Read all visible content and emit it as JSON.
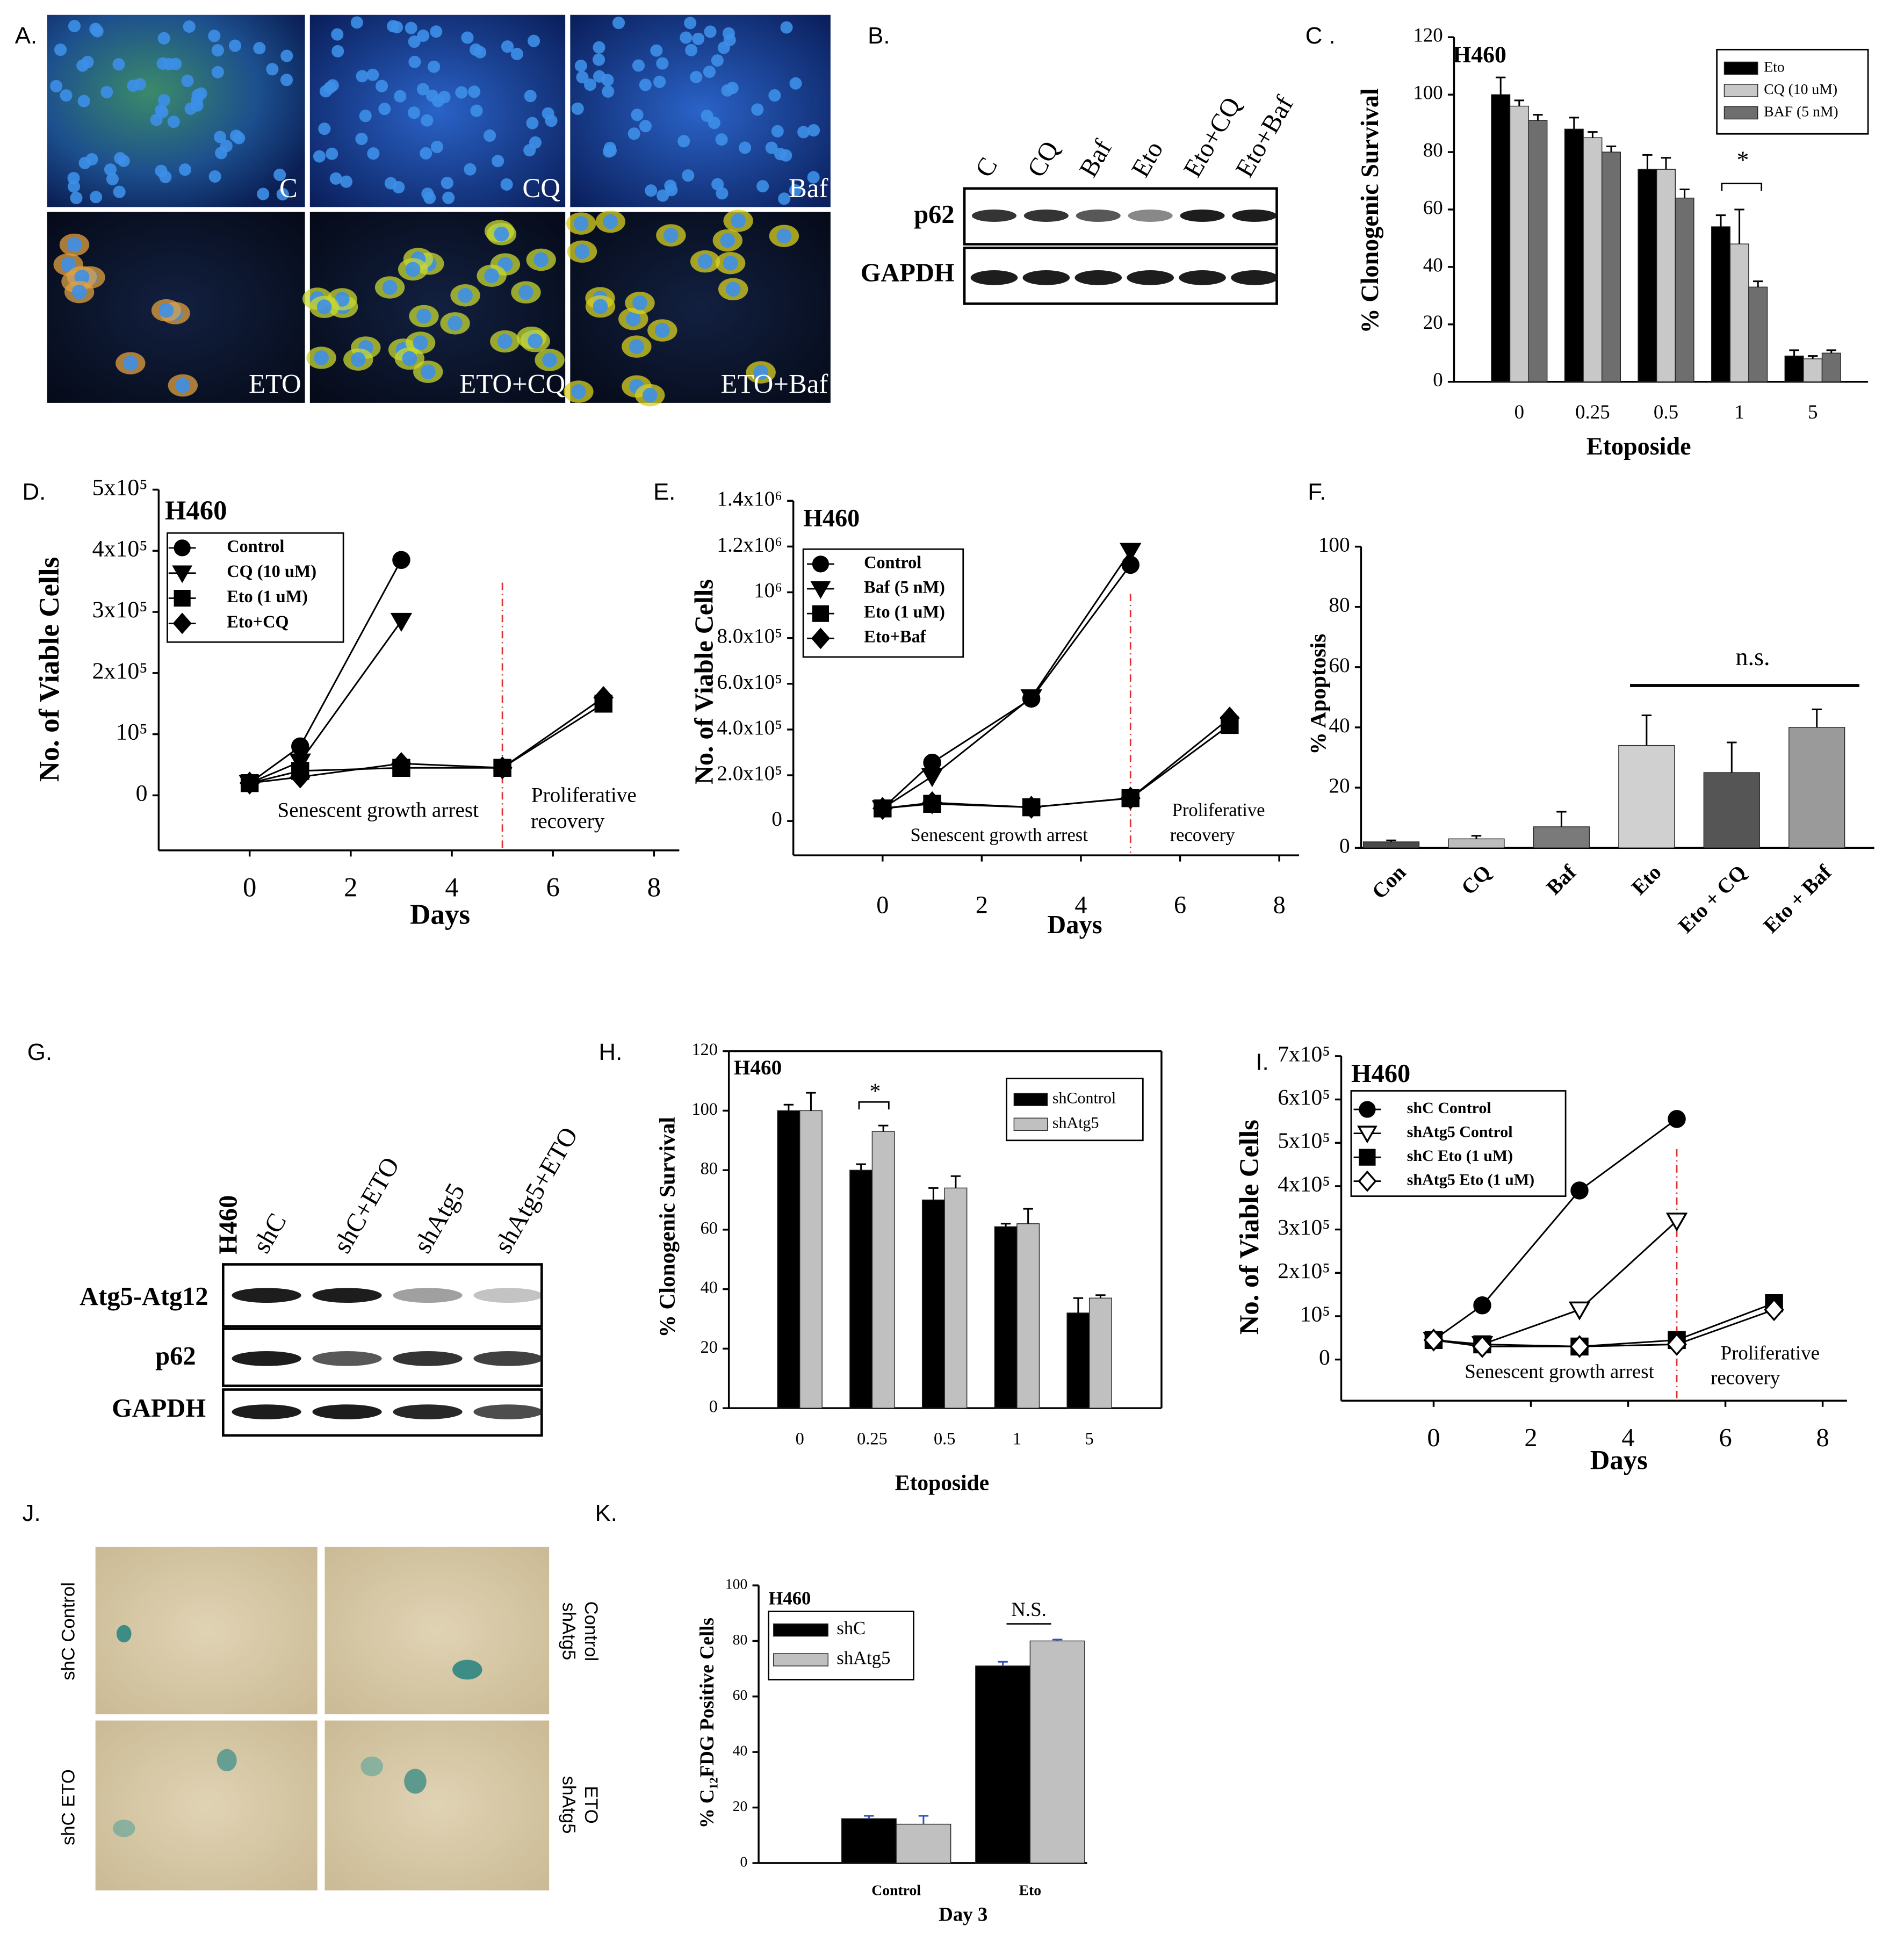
{
  "figure": {
    "panel_labels": [
      "A.",
      "B.",
      "C .",
      "D.",
      "E.",
      "F.",
      "G.",
      "H.",
      "I.",
      "J.",
      "K."
    ],
    "micrographs": [
      "C",
      "CQ",
      "Baf",
      "ETO",
      "ETO+CQ",
      "ETO+Baf"
    ],
    "blot_b": {
      "lanes": [
        "C",
        "CQ",
        "Baf",
        "Eto",
        "Eto+CQ",
        "Eto+Baf"
      ],
      "rows": [
        "p62",
        "GAPDH"
      ]
    },
    "blot_g": {
      "cell_line": "H460",
      "lanes": [
        "shC",
        "shC+ETO",
        "shAtg5",
        "shAtg5+ETO"
      ],
      "rows": [
        "Atg5-Atg12",
        "p62",
        "GAPDH"
      ]
    },
    "stain_labels": [
      "shC Control",
      "shAtg5",
      "Control",
      "shC ETO",
      "shAtg5",
      "ETO"
    ]
  },
  "chart_data": [
    {
      "type": "bar",
      "title": "H460",
      "x_label": "Etoposide",
      "y_label": "% Clonogenic Survival",
      "categories": [
        "0",
        "0.25",
        "0.5",
        "1",
        "5"
      ],
      "series": [
        {
          "name": "Eto",
          "color": "#000000",
          "values": [
            100,
            88,
            74,
            54,
            9
          ],
          "errors": [
            6,
            4,
            5,
            4,
            2
          ]
        },
        {
          "name": "CQ (10 uM)",
          "color": "#c8c8c8",
          "values": [
            96,
            85,
            74,
            48,
            8
          ],
          "errors": [
            2,
            2,
            4,
            12,
            1
          ]
        },
        {
          "name": "BAF (5 nM)",
          "color": "#6e6e6e",
          "values": [
            91,
            80,
            64,
            33,
            10
          ],
          "errors": [
            2,
            2,
            3,
            2,
            1
          ]
        }
      ],
      "ylim": [
        0,
        120
      ],
      "yticks": [
        0,
        20,
        40,
        60,
        80,
        100,
        120
      ],
      "legend": "upper right",
      "annotations": [
        "*"
      ]
    },
    {
      "type": "line",
      "title": "H460",
      "x_label": "Days",
      "y_label": "No. of Viable Cells",
      "series": [
        {
          "name": "Control",
          "color": "#000000",
          "marker": "circle",
          "filled": true,
          "x": [
            0,
            1,
            3
          ],
          "values": [
            20000,
            80000,
            385000
          ]
        },
        {
          "name": "CQ (10 uM)",
          "color": "#000000",
          "marker": "triangle-down",
          "filled": true,
          "x": [
            0,
            1,
            3
          ],
          "values": [
            20000,
            55000,
            285000
          ]
        },
        {
          "name": "Eto (1 uM)",
          "color": "#000000",
          "marker": "square",
          "filled": true,
          "x": [
            0,
            1,
            3,
            5,
            7
          ],
          "values": [
            20000,
            40000,
            45000,
            45000,
            150000
          ]
        },
        {
          "name": "Eto+CQ",
          "color": "#000000",
          "marker": "diamond",
          "filled": true,
          "x": [
            0,
            1,
            3,
            5,
            7
          ],
          "values": [
            20000,
            30000,
            52000,
            45000,
            160000
          ]
        }
      ],
      "xlim": [
        -1.8,
        8.5
      ],
      "xticks": [
        0,
        2,
        4,
        6,
        8
      ],
      "ylim": [
        -90000,
        500000
      ],
      "yticks": [
        0,
        {
          "value": 100000,
          "label": "10⁵"
        },
        {
          "value": 200000,
          "label": "2x10⁵"
        },
        {
          "value": 300000,
          "label": "3x10⁵"
        },
        {
          "value": 400000,
          "label": "4x10⁵"
        },
        {
          "value": 500000,
          "label": "5x10⁵"
        }
      ],
      "vline": 5,
      "vline_color": "#e03030",
      "legend": "upper left",
      "annotations": [
        "Senescent growth arrest",
        "Proliferative",
        "recovery"
      ]
    },
    {
      "type": "line",
      "title": "H460",
      "x_label": "Days",
      "y_label": "No. of Viable Cells",
      "series": [
        {
          "name": "Control",
          "color": "#000000",
          "marker": "circle",
          "filled": true,
          "x": [
            0,
            1,
            3,
            5
          ],
          "values": [
            55000,
            255000,
            535000,
            1120000
          ]
        },
        {
          "name": "Baf (5 nM)",
          "color": "#000000",
          "marker": "triangle-down",
          "filled": true,
          "x": [
            0,
            1,
            3,
            5
          ],
          "values": [
            55000,
            195000,
            540000,
            1180000
          ]
        },
        {
          "name": "Eto (1 uM)",
          "color": "#000000",
          "marker": "square",
          "filled": true,
          "x": [
            0,
            1,
            3,
            5,
            7
          ],
          "values": [
            55000,
            75000,
            60000,
            100000,
            420000
          ]
        },
        {
          "name": "Eto+Baf",
          "color": "#000000",
          "marker": "diamond",
          "filled": true,
          "x": [
            0,
            1,
            3,
            5,
            7
          ],
          "values": [
            55000,
            80000,
            60000,
            100000,
            450000
          ]
        }
      ],
      "xlim": [
        -1.8,
        8.4
      ],
      "xticks": [
        0,
        2,
        4,
        6,
        8
      ],
      "ylim": [
        -150000,
        1400000
      ],
      "yticks": [
        0,
        {
          "value": 200000,
          "label": "2.0x10⁵"
        },
        {
          "value": 400000,
          "label": "4.0x10⁵"
        },
        {
          "value": 600000,
          "label": "6.0x10⁵"
        },
        {
          "value": 800000,
          "label": "8.0x10⁵"
        },
        {
          "value": 1000000,
          "label": "10⁶"
        },
        {
          "value": 1200000,
          "label": "1.2x10⁶"
        },
        {
          "value": 1400000,
          "label": "1.4x10⁶"
        }
      ],
      "vline": 5,
      "vline_color": "#e03030",
      "legend": "upper left",
      "annotations": [
        "Senescent growth arrest",
        "Proliferative",
        "recovery"
      ]
    },
    {
      "type": "bar",
      "y_label": "% Apoptosis",
      "categories": [
        "Con",
        "CQ",
        "Baf",
        "Eto",
        "Eto + CQ",
        "Eto + Baf"
      ],
      "values": [
        2,
        3,
        7,
        34,
        25,
        40
      ],
      "errors": [
        0.5,
        1,
        5,
        10,
        10,
        6
      ],
      "colors": [
        "#4a4a4a",
        "#bdbdbd",
        "#7a7a7a",
        "#d0d0d0",
        "#555555",
        "#9a9a9a"
      ],
      "ylim": [
        0,
        100
      ],
      "yticks": [
        0,
        20,
        40,
        60,
        80,
        100
      ],
      "annotations": [
        "n.s."
      ]
    },
    {
      "type": "bar",
      "title": "H460",
      "x_label": "Etoposide",
      "y_label": "% Clonogenic Survival",
      "categories": [
        "0",
        "0.25",
        "0.5",
        "1",
        "5"
      ],
      "series": [
        {
          "name": "shControl",
          "color": "#000000",
          "values": [
            100,
            80,
            70,
            61,
            32
          ],
          "errors": [
            2,
            2,
            4,
            1,
            5
          ]
        },
        {
          "name": "shAtg5",
          "color": "#c0c0c0",
          "values": [
            100,
            93,
            74,
            62,
            37
          ],
          "errors": [
            6,
            2,
            4,
            5,
            1
          ]
        }
      ],
      "ylim": [
        0,
        120
      ],
      "yticks": [
        0,
        20,
        40,
        60,
        80,
        100,
        120
      ],
      "legend": "upper right",
      "annotations": [
        "*"
      ]
    },
    {
      "type": "line",
      "title": "H460",
      "x_label": "Days",
      "y_label": "No. of Viable Cells",
      "series": [
        {
          "name": "shC Control",
          "color": "#000000",
          "marker": "circle",
          "filled": true,
          "x": [
            0,
            1,
            3,
            5
          ],
          "values": [
            45000,
            125000,
            390000,
            555000
          ]
        },
        {
          "name": "shAtg5 Control",
          "color": "#000000",
          "marker": "triangle-down",
          "filled": false,
          "x": [
            0,
            1,
            3,
            5
          ],
          "values": [
            45000,
            35000,
            115000,
            320000
          ]
        },
        {
          "name": "shC Eto (1 uM)",
          "color": "#000000",
          "marker": "square",
          "filled": true,
          "x": [
            0,
            1,
            3,
            5,
            7
          ],
          "values": [
            45000,
            35000,
            30000,
            45000,
            130000
          ]
        },
        {
          "name": "shAtg5 Eto (1 uM)",
          "color": "#000000",
          "marker": "diamond",
          "filled": false,
          "x": [
            0,
            1,
            3,
            5,
            7
          ],
          "values": [
            45000,
            30000,
            30000,
            35000,
            115000
          ]
        }
      ],
      "xlim": [
        -1.9,
        8.5
      ],
      "xticks": [
        0,
        2,
        4,
        6,
        8
      ],
      "ylim": [
        -95000,
        700000
      ],
      "yticks": [
        0,
        {
          "value": 100000,
          "label": "10⁵"
        },
        {
          "value": 200000,
          "label": "2x10⁵"
        },
        {
          "value": 300000,
          "label": "3x10⁵"
        },
        {
          "value": 400000,
          "label": "4x10⁵"
        },
        {
          "value": 500000,
          "label": "5x10⁵"
        },
        {
          "value": 600000,
          "label": "6x10⁵"
        },
        {
          "value": 700000,
          "label": "7x10⁵"
        }
      ],
      "vline": 5,
      "vline_color": "#e03030",
      "legend": "upper left",
      "annotations": [
        "Senescent growth arrest",
        "Proliferative",
        "recovery"
      ]
    },
    {
      "type": "bar",
      "title": "H460",
      "x_label": "Day 3",
      "y_label": "% C₁₂FDG Positive Cells",
      "categories": [
        "Control",
        "Eto"
      ],
      "series": [
        {
          "name": "shC",
          "color": "#000000",
          "values": [
            16,
            71
          ],
          "errors": [
            1,
            1.5
          ]
        },
        {
          "name": "shAtg5",
          "color": "#c0c0c0",
          "values": [
            14,
            80
          ],
          "errors": [
            3,
            0.5
          ]
        }
      ],
      "ylim": [
        0,
        100
      ],
      "yticks": [
        0,
        20,
        40,
        60,
        80,
        100
      ],
      "legend": "upper left",
      "annotations": [
        "N.S."
      ]
    }
  ]
}
